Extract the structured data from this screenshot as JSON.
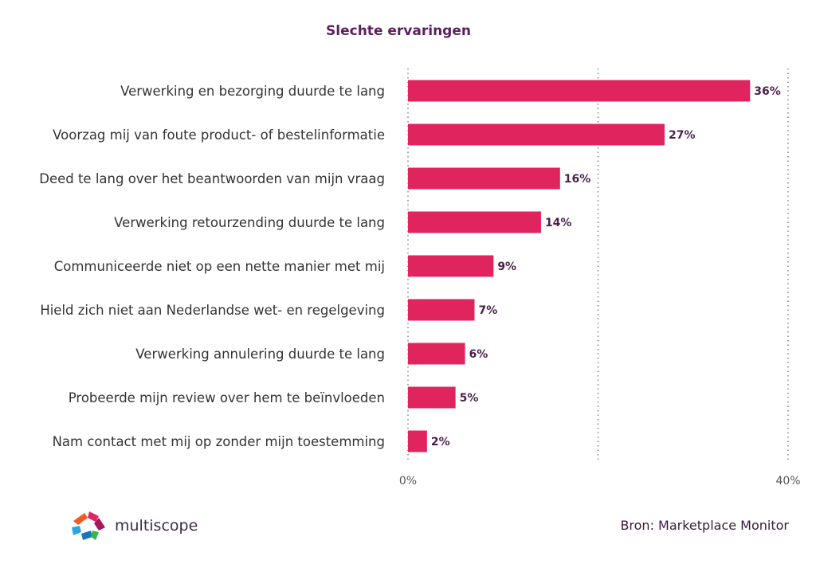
{
  "chart_data": {
    "type": "bar",
    "orientation": "horizontal",
    "title": "Slechte ervaringen",
    "categories": [
      "Verwerking en bezorging duurde te lang",
      "Voorzag mij van foute product- of bestelinformatie",
      "Deed te lang over het beantwoorden van mijn vraag",
      "Verwerking retourzending duurde te lang",
      "Communiceerde niet op een nette manier met mij",
      "Hield zich niet aan Nederlandse wet- en regelgeving",
      "Verwerking annulering duurde te lang",
      "Probeerde mijn review over hem te beïnvloeden",
      "Nam contact met mij op zonder mijn toestemming"
    ],
    "values": [
      36,
      27,
      16,
      14,
      9,
      7,
      6,
      5,
      2
    ],
    "value_labels": [
      "36%",
      "27%",
      "16%",
      "14%",
      "9%",
      "7%",
      "6%",
      "5%",
      "2%"
    ],
    "xlim": [
      0,
      40
    ],
    "x_ticks": [
      0,
      20,
      40
    ],
    "x_tick_labels": [
      "0%",
      "",
      "40%"
    ],
    "grid": "vertical dotted",
    "bar_color": "#e0245e"
  },
  "branding": {
    "logo_text": "multiscope",
    "logo_icon": "multiscope-logo-icon"
  },
  "source": "Bron: Marketplace Monitor"
}
